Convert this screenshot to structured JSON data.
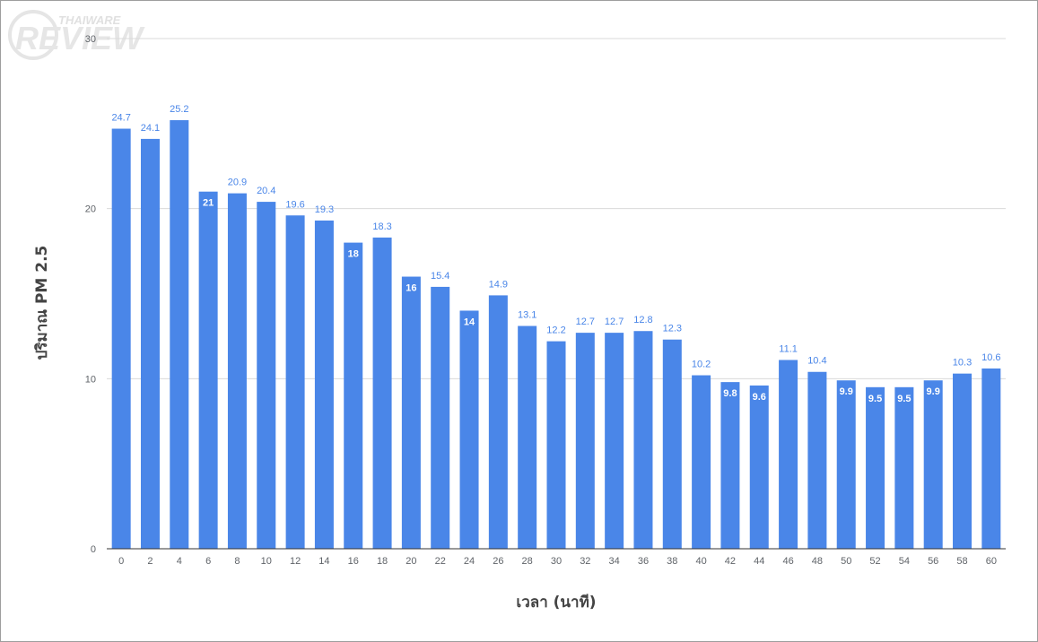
{
  "logo": {
    "top": "THAIWARE",
    "bottom": "REVIEW"
  },
  "chart_data": {
    "type": "bar",
    "title": "",
    "xlabel": "เวลา (นาที)",
    "ylabel": "ปริมาณ PM 2.5",
    "ylim": [
      0,
      30
    ],
    "yticks": [
      "0",
      "10",
      "20",
      "30"
    ],
    "grid": true,
    "bar_color": "#4a86e8",
    "categories": [
      "0",
      "2",
      "4",
      "6",
      "8",
      "10",
      "12",
      "14",
      "16",
      "18",
      "20",
      "22",
      "24",
      "26",
      "28",
      "30",
      "32",
      "34",
      "36",
      "38",
      "40",
      "42",
      "44",
      "46",
      "48",
      "50",
      "52",
      "54",
      "56",
      "58",
      "60"
    ],
    "values": [
      24.7,
      24.1,
      25.2,
      21,
      20.9,
      20.4,
      19.6,
      19.3,
      18,
      18.3,
      16,
      15.4,
      14,
      14.9,
      13.1,
      12.2,
      12.7,
      12.7,
      12.8,
      12.3,
      10.2,
      9.8,
      9.6,
      11.1,
      10.4,
      9.9,
      9.5,
      9.5,
      9.9,
      10.3,
      10.6
    ],
    "labels": [
      "24.7",
      "24.1",
      "25.2",
      "21",
      "20.9",
      "20.4",
      "19.6",
      "19.3",
      "18",
      "18.3",
      "16",
      "15.4",
      "14",
      "14.9",
      "13.1",
      "12.2",
      "12.7",
      "12.7",
      "12.8",
      "12.3",
      "10.2",
      "9.8",
      "9.6",
      "11.1",
      "10.4",
      "9.9",
      "9.5",
      "9.5",
      "9.9",
      "10.3",
      "10.6"
    ],
    "label_inside": [
      false,
      false,
      false,
      true,
      false,
      false,
      false,
      false,
      true,
      false,
      true,
      false,
      true,
      false,
      false,
      false,
      false,
      false,
      false,
      false,
      false,
      true,
      true,
      false,
      false,
      true,
      true,
      true,
      true,
      false,
      false
    ]
  }
}
